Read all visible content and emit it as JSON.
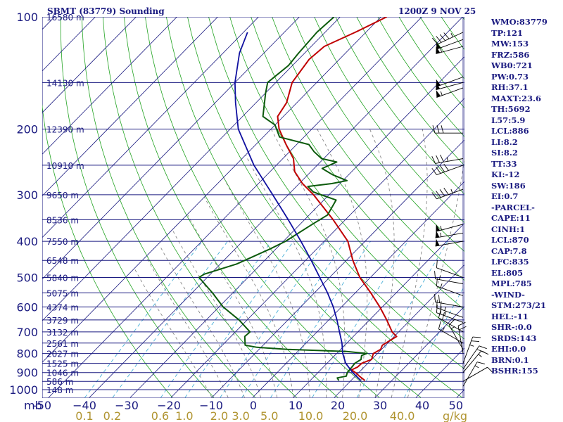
{
  "header": {
    "title": "SBMT (83779) Sounding",
    "datetime": "1200Z  9 NOV 25"
  },
  "stats": [
    "WMO:83779",
    "TP:121",
    "MW:153",
    "FRZ:586",
    "WB0:721",
    "PW:0.73",
    "RH:37.1",
    "MAXT:23.6",
    "TH:5692",
    "L57:5.9",
    "LCL:886",
    "LI:8.2",
    "SI:8.2",
    "TT:33",
    "KI:-12",
    "SW:186",
    "EI:0.7",
    "-PARCEL-",
    "CAPE:11",
    "CINH:1",
    "LCL:870",
    "CAP:7.8",
    "LFC:835",
    "EL:805",
    "MPL:785",
    "-WIND-",
    "STM:273/21",
    "HEL:-11",
    "SHR-:0.0",
    "SRDS:143",
    "EHI:0.0",
    "BRN:0.1",
    "BSHR:155"
  ],
  "colors": {
    "axis_text": "#1a1a80",
    "isobar": "#1a1a80",
    "isotherm": "#1a1a80",
    "dry_adiabat": "#22a322",
    "moist_adiabat": "#7a7a7a",
    "mixing_ratio": "#4ab0d8",
    "temperature": "#c00000",
    "dewpoint": "#0c5a0c",
    "parcel": "#1010a0",
    "mixing_label": "#b09430"
  },
  "chart_data": {
    "type": "line",
    "diagram": "skew-t log-p",
    "xlabel": "",
    "ylabel": "mb",
    "mixing_ratio_unit": "g/kg",
    "pressure_ticks": [
      100,
      200,
      300,
      400,
      500,
      600,
      700,
      800,
      900,
      1000
    ],
    "height_labels": [
      {
        "p": 100,
        "label": "16580 m"
      },
      {
        "p": 150,
        "label": "14130 m"
      },
      {
        "p": 200,
        "label": "12390 m"
      },
      {
        "p": 250,
        "label": "10910 m"
      },
      {
        "p": 300,
        "label": "9650 m"
      },
      {
        "p": 350,
        "label": "8536 m"
      },
      {
        "p": 400,
        "label": "7550 m"
      },
      {
        "p": 450,
        "label": "6548 m"
      },
      {
        "p": 500,
        "label": "5840 m"
      },
      {
        "p": 550,
        "label": "5075 m"
      },
      {
        "p": 600,
        "label": "4374 m"
      },
      {
        "p": 650,
        "label": "3729 m"
      },
      {
        "p": 700,
        "label": "3132 m"
      },
      {
        "p": 750,
        "label": "2561 m"
      },
      {
        "p": 800,
        "label": "2027 m"
      },
      {
        "p": 850,
        "label": "1525 m"
      },
      {
        "p": 900,
        "label": "1046 m"
      },
      {
        "p": 950,
        "label": "586 m"
      },
      {
        "p": 1000,
        "label": "148 m"
      }
    ],
    "temperature_ticks": [
      -50,
      -40,
      -30,
      -20,
      -10,
      0,
      10,
      20,
      30,
      40,
      50
    ],
    "mixing_ratio_labels": [
      "0.1",
      "0.2",
      "0.6",
      "1.0",
      "2.0",
      "3.0",
      "5.0",
      "10.0",
      "20.0",
      "40.0"
    ],
    "mixing_ratio_values": [
      0.1,
      0.2,
      0.6,
      1.0,
      2.0,
      3.0,
      5.0,
      10.0,
      20.0,
      40.0
    ],
    "ylim": [
      1000,
      100
    ],
    "xlim": [
      -50,
      50
    ],
    "series": [
      {
        "key": "temperature",
        "points": [
          [
            945,
            23.4
          ],
          [
            920,
            21.0
          ],
          [
            900,
            19.2
          ],
          [
            885,
            17.6
          ],
          [
            870,
            18.4
          ],
          [
            850,
            18.5
          ],
          [
            830,
            20.0
          ],
          [
            800,
            19.0
          ],
          [
            780,
            19.8
          ],
          [
            760,
            19.2
          ],
          [
            720,
            20.6
          ],
          [
            700,
            18.4
          ],
          [
            650,
            14.2
          ],
          [
            600,
            9.4
          ],
          [
            550,
            3.8
          ],
          [
            500,
            -2.6
          ],
          [
            450,
            -8.4
          ],
          [
            400,
            -14.2
          ],
          [
            350,
            -23.0
          ],
          [
            300,
            -33.8
          ],
          [
            280,
            -39.2
          ],
          [
            260,
            -44.0
          ],
          [
            240,
            -47.4
          ],
          [
            220,
            -52.6
          ],
          [
            200,
            -58.0
          ],
          [
            185,
            -61.4
          ],
          [
            170,
            -62.5
          ],
          [
            150,
            -66.0
          ],
          [
            130,
            -67.4
          ],
          [
            120,
            -66.8
          ],
          [
            110,
            -62.6
          ],
          [
            100,
            -58.6
          ]
        ]
      },
      {
        "key": "dewpoint",
        "points": [
          [
            945,
            17.0
          ],
          [
            930,
            16.0
          ],
          [
            920,
            17.8
          ],
          [
            900,
            17.2
          ],
          [
            870,
            17.0
          ],
          [
            850,
            16.8
          ],
          [
            830,
            17.4
          ],
          [
            810,
            16.6
          ],
          [
            800,
            17.4
          ],
          [
            790,
            12.0
          ],
          [
            780,
            -3.0
          ],
          [
            770,
            -11.0
          ],
          [
            760,
            -14.4
          ],
          [
            720,
            -16.6
          ],
          [
            700,
            -16.4
          ],
          [
            650,
            -22.0
          ],
          [
            600,
            -29.0
          ],
          [
            550,
            -35.0
          ],
          [
            500,
            -42.0
          ],
          [
            490,
            -41.5
          ],
          [
            460,
            -36.0
          ],
          [
            420,
            -31.5
          ],
          [
            400,
            -29.5
          ],
          [
            360,
            -27.0
          ],
          [
            340,
            -25.5
          ],
          [
            310,
            -27.0
          ],
          [
            295,
            -34.5
          ],
          [
            285,
            -37.2
          ],
          [
            280,
            -32.0
          ],
          [
            275,
            -29.0
          ],
          [
            265,
            -34.0
          ],
          [
            255,
            -38.0
          ],
          [
            245,
            -36.0
          ],
          [
            240,
            -40.5
          ],
          [
            230,
            -44.0
          ],
          [
            220,
            -47.0
          ],
          [
            210,
            -56.0
          ],
          [
            195,
            -60.0
          ],
          [
            185,
            -65.0
          ],
          [
            160,
            -70.0
          ],
          [
            150,
            -72.0
          ],
          [
            135,
            -71.0
          ],
          [
            125,
            -71.5
          ],
          [
            110,
            -72.0
          ],
          [
            100,
            -71.5
          ]
        ]
      },
      {
        "key": "parcel",
        "points": [
          [
            945,
            22.4
          ],
          [
            900,
            18.5
          ],
          [
            850,
            14.6
          ],
          [
            800,
            11.5
          ],
          [
            750,
            8.8
          ],
          [
            700,
            5.5
          ],
          [
            650,
            2.0
          ],
          [
            600,
            -2.0
          ],
          [
            550,
            -6.8
          ],
          [
            500,
            -12.4
          ],
          [
            450,
            -18.6
          ],
          [
            400,
            -25.7
          ],
          [
            350,
            -34.0
          ],
          [
            300,
            -43.8
          ],
          [
            250,
            -55.5
          ],
          [
            200,
            -68.0
          ],
          [
            170,
            -75.0
          ],
          [
            150,
            -80.0
          ],
          [
            125,
            -86.0
          ],
          [
            110,
            -89.0
          ]
        ]
      }
    ],
    "grid": true,
    "legend": "none"
  }
}
